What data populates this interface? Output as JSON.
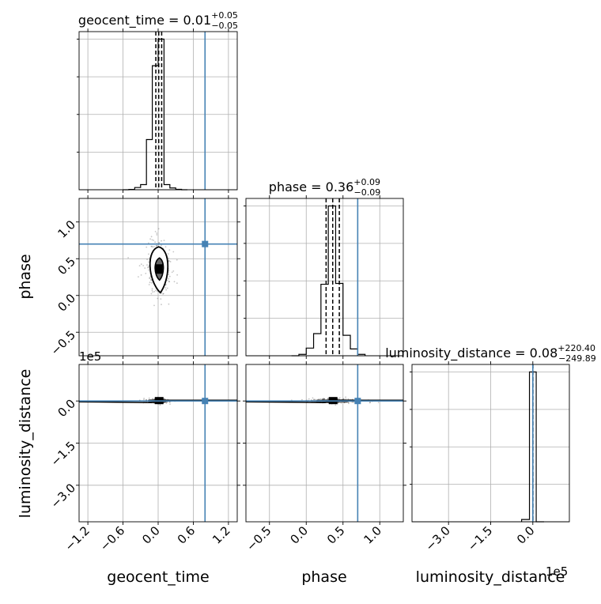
{
  "chart_data": {
    "type": "corner",
    "parameters": [
      "geocent_time",
      "phase",
      "luminosity_distance"
    ],
    "axis_labels": {
      "geocent_time": "geocent_time",
      "phase": "phase",
      "luminosity_distance": "luminosity_distance"
    },
    "axis_ranges": {
      "geocent_time": [
        -1.35,
        1.35
      ],
      "phase": [
        -0.82,
        1.32
      ],
      "luminosity_distance": [
        -430000,
        130000
      ]
    },
    "tick_labels": {
      "geocent_time": [
        "−1.2",
        "−0.6",
        "0.0",
        "0.6",
        "1.2"
      ],
      "phase": [
        "−0.5",
        "0.0",
        "0.5",
        "1.0"
      ],
      "luminosity_distance": [
        "−3.0",
        "−1.5",
        "0.0"
      ]
    },
    "offset_labels": {
      "phase_row": "1e5",
      "luminosity_distance_column": "1e5"
    },
    "titles": {
      "geocent_time": {
        "prefix": "geocent_time = 0.01",
        "upper": "+0.05",
        "lower": "−0.05"
      },
      "phase": {
        "prefix": "phase = 0.36",
        "upper": "+0.09",
        "lower": "−0.09"
      },
      "luminosity_distance": {
        "prefix": "luminosity_distance = 0.08",
        "upper": "+220.40",
        "lower": "−249.89"
      }
    },
    "injection": {
      "geocent_time": 0.8,
      "phase": 0.7,
      "luminosity_distance": 0.0
    },
    "quantiles": {
      "geocent_time": [
        -0.04,
        0.01,
        0.06
      ],
      "phase": [
        0.27,
        0.36,
        0.45
      ],
      "luminosity_distance": [
        -249.8,
        0.08,
        220.5
      ]
    },
    "marginals": {
      "geocent_time": {
        "bin_edges": [
          -0.6,
          -0.5,
          -0.4,
          -0.3,
          -0.2,
          -0.1,
          0.0,
          0.1,
          0.2,
          0.3,
          0.4,
          0.5
        ],
        "counts": [
          0,
          2,
          15,
          35,
          340,
          840,
          1020,
          35,
          12,
          3,
          0
        ]
      },
      "phase": {
        "bin_edges": [
          -0.2,
          -0.1,
          0.0,
          0.1,
          0.2,
          0.3,
          0.4,
          0.5,
          0.6,
          0.7,
          0.8
        ],
        "counts": [
          0,
          8,
          45,
          130,
          420,
          880,
          425,
          120,
          40,
          8
        ]
      },
      "luminosity_distance": {
        "bin_edges": [
          -40000,
          -12000,
          12000,
          40000
        ],
        "counts": [
          15,
          1000,
          0
        ]
      }
    },
    "grid": true,
    "colors": {
      "injection": "#4682b4",
      "histogram": "#000000",
      "samples": "#555555"
    }
  }
}
